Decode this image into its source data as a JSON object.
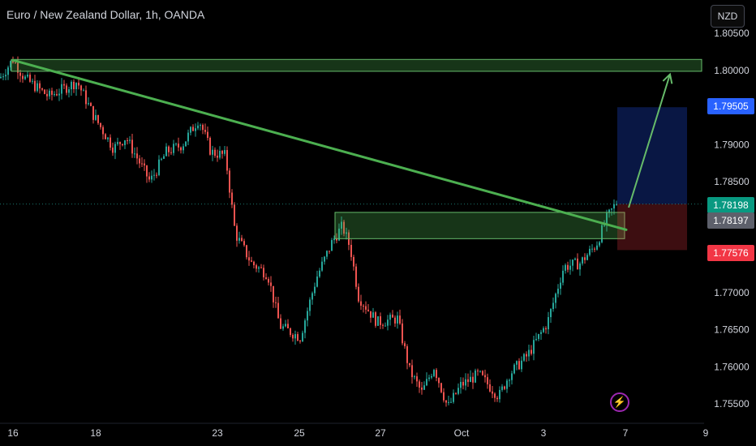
{
  "header": {
    "title": "Euro / New Zealand Dollar, 1h, OANDA",
    "currency_button": "NZD"
  },
  "colors": {
    "up": "#26a69a",
    "down": "#ef5350",
    "trendline": "#4caf50",
    "zone_fill": "rgba(76,175,80,0.30)",
    "zone_border": "#66bb6a",
    "target_fill": "rgba(33,82,243,0.28)",
    "stop_fill": "rgba(242,54,69,0.25)",
    "badge_blue": "#2962ff",
    "badge_green": "#089981",
    "badge_gray": "#5d606b",
    "badge_red": "#f23645",
    "axis_text": "#d1d4dc",
    "bolt": "#9c27b0"
  },
  "chart_data": {
    "type": "candlestick",
    "symbol": "EURNZD",
    "interval": "1h",
    "y_ticks": [
      1.8,
      1.79,
      1.785,
      1.77,
      1.765,
      1.76,
      1.755
    ],
    "y_tick_labels": [
      "1.80000",
      "1.79000",
      "1.78500",
      "1.77000",
      "1.76500",
      "1.76000",
      "1.75500"
    ],
    "ylim": [
      1.7535,
      1.8045
    ],
    "x_ticks": [
      "16",
      "18",
      "23",
      "25",
      "27",
      "Oct",
      "3",
      "7",
      "9"
    ],
    "price_badges": [
      {
        "label": "1.79505",
        "kind": "target"
      },
      {
        "label": "1.78198",
        "kind": "last"
      },
      {
        "label": "1.78197",
        "kind": "current"
      },
      {
        "label": "1.77576",
        "kind": "stop"
      }
    ],
    "path_keypoints": [
      [
        0,
        1.799
      ],
      [
        16,
        1.8015
      ],
      [
        30,
        1.799
      ],
      [
        60,
        1.7965
      ],
      [
        95,
        1.7985
      ],
      [
        115,
        1.794
      ],
      [
        140,
        1.7895
      ],
      [
        155,
        1.791
      ],
      [
        185,
        1.785
      ],
      [
        205,
        1.789
      ],
      [
        225,
        1.79
      ],
      [
        245,
        1.7935
      ],
      [
        260,
        1.789
      ],
      [
        278,
        1.7885
      ],
      [
        290,
        1.778
      ],
      [
        310,
        1.774
      ],
      [
        330,
        1.7725
      ],
      [
        345,
        1.7655
      ],
      [
        370,
        1.764
      ],
      [
        390,
        1.772
      ],
      [
        410,
        1.777
      ],
      [
        422,
        1.779
      ],
      [
        432,
        1.776
      ],
      [
        442,
        1.7695
      ],
      [
        465,
        1.766
      ],
      [
        490,
        1.7665
      ],
      [
        505,
        1.7595
      ],
      [
        520,
        1.7565
      ],
      [
        535,
        1.76
      ],
      [
        552,
        1.7545
      ],
      [
        568,
        1.7575
      ],
      [
        590,
        1.759
      ],
      [
        615,
        1.756
      ],
      [
        628,
        1.759
      ],
      [
        650,
        1.7615
      ],
      [
        675,
        1.766
      ],
      [
        695,
        1.7735
      ],
      [
        715,
        1.774
      ],
      [
        735,
        1.7765
      ],
      [
        748,
        1.78
      ],
      [
        760,
        1.7822
      ]
    ],
    "resistance_zone": {
      "price_top": 1.8015,
      "price_bottom": 1.7999
    },
    "support_zone": {
      "price_top": 1.78085,
      "price_bottom": 1.7773
    },
    "trendline": {
      "start": [
        16,
        1.8014
      ],
      "end": [
        772,
        1.7785
      ]
    },
    "position": {
      "target": 1.79505,
      "entry": 1.78198,
      "stop": 1.77576
    },
    "projection_arrow": {
      "from": 1.7815,
      "to": 1.7995
    }
  }
}
